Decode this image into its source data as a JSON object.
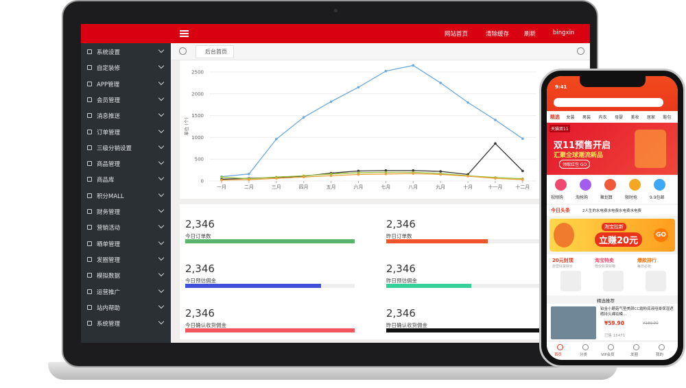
{
  "header": {
    "links": [
      "网站首页",
      "清除缓存",
      "刷新",
      "bingxin"
    ]
  },
  "sidebar": {
    "items": [
      "系统设置",
      "自定装修",
      "APP管理",
      "会员管理",
      "消息推送",
      "订单管理",
      "三级分销设置",
      "商品管理",
      "商品库",
      "积分MALL",
      "财务管理",
      "营销活动",
      "晒单管理",
      "发圈管理",
      "模拟数据",
      "运营推广",
      "站内帮助",
      "系统管理"
    ]
  },
  "tabs": {
    "home": "后台首页"
  },
  "chart_data": {
    "type": "line",
    "y_label": "单位 (个)",
    "categories": [
      "一月",
      "二月",
      "三月",
      "四月",
      "五月",
      "六月",
      "七月",
      "八月",
      "九月",
      "十月",
      "十一月",
      "十二月"
    ],
    "series": [
      {
        "color": "#6aa9e0",
        "values": [
          100,
          160,
          960,
          1460,
          1820,
          2150,
          2520,
          2650,
          2250,
          1800,
          1400,
          970
        ]
      },
      {
        "color": "#333333",
        "values": [
          40,
          60,
          80,
          110,
          180,
          230,
          240,
          240,
          220,
          150,
          860,
          230
        ]
      },
      {
        "color": "#9bbf3a",
        "values": [
          90,
          50,
          90,
          120,
          160,
          190,
          200,
          200,
          170,
          120,
          80,
          50
        ]
      },
      {
        "color": "#e9a23b",
        "values": [
          20,
          30,
          60,
          90,
          120,
          150,
          160,
          170,
          150,
          110,
          60,
          30
        ]
      }
    ],
    "ylim": [
      0,
      2500
    ],
    "yticks": [
      0,
      500,
      1000,
      1500,
      2000,
      2500
    ],
    "grid": true
  },
  "stats": [
    {
      "value": "2,346",
      "label": "今日订单数",
      "color": "#5ab46e",
      "progress": 1
    },
    {
      "value": "2,346",
      "label": "昨日订单数",
      "color": "#f0542a",
      "progress": 0.6
    },
    {
      "value": "2,346",
      "label": "今日预估佣金",
      "color": "#3f51d9",
      "progress": 0.8
    },
    {
      "value": "2,346",
      "label": "昨日预估佣金",
      "color": "#35d19a",
      "progress": 0.5
    },
    {
      "value": "2,346",
      "label": "今日确认收货佣金",
      "color": "#f0555c",
      "progress": 1
    },
    {
      "value": "2,346",
      "label": "昨日确认收货佣金",
      "color": "#111111",
      "progress": 0.96
    }
  ],
  "phone": {
    "time": "9:41",
    "nav": [
      "精选",
      "女装",
      "男装",
      "内衣",
      "母婴",
      "美妆",
      "居家",
      "鞋包"
    ],
    "banner": {
      "tag": "天猫双11",
      "title": "双11预售开启",
      "subtitle": "汇聚全球潮流新品",
      "button": "领取红包 GO"
    },
    "icons": [
      "视频购",
      "淘抢购",
      "聚划算",
      "限时抢",
      "9.9包邮"
    ],
    "headline": {
      "label": "今日头条",
      "text": "2人生的水电费水电费水电费水电费"
    },
    "promo": {
      "tag": "淘宝拉新",
      "title": "立赚20元",
      "button": "GO"
    },
    "cards": [
      {
        "title": "20元封顶",
        "sub": "自营好货好价"
      },
      {
        "title": "淘宝特卖",
        "sub": "低价好货好物"
      },
      {
        "title": "爆款排行",
        "sub": "每日必抢"
      }
    ],
    "section": "精选推荐",
    "product": {
      "title": "铂金小蘑菇气垫美颜CC霜粉底液哑膏保湿遮暇持久裸妆模...",
      "price": "¥59.90",
      "original": "¥189.90",
      "sold": "已售 16471"
    },
    "tabbar": [
      "首页",
      "分类",
      "VIP会员",
      "发圈",
      "我的"
    ]
  }
}
